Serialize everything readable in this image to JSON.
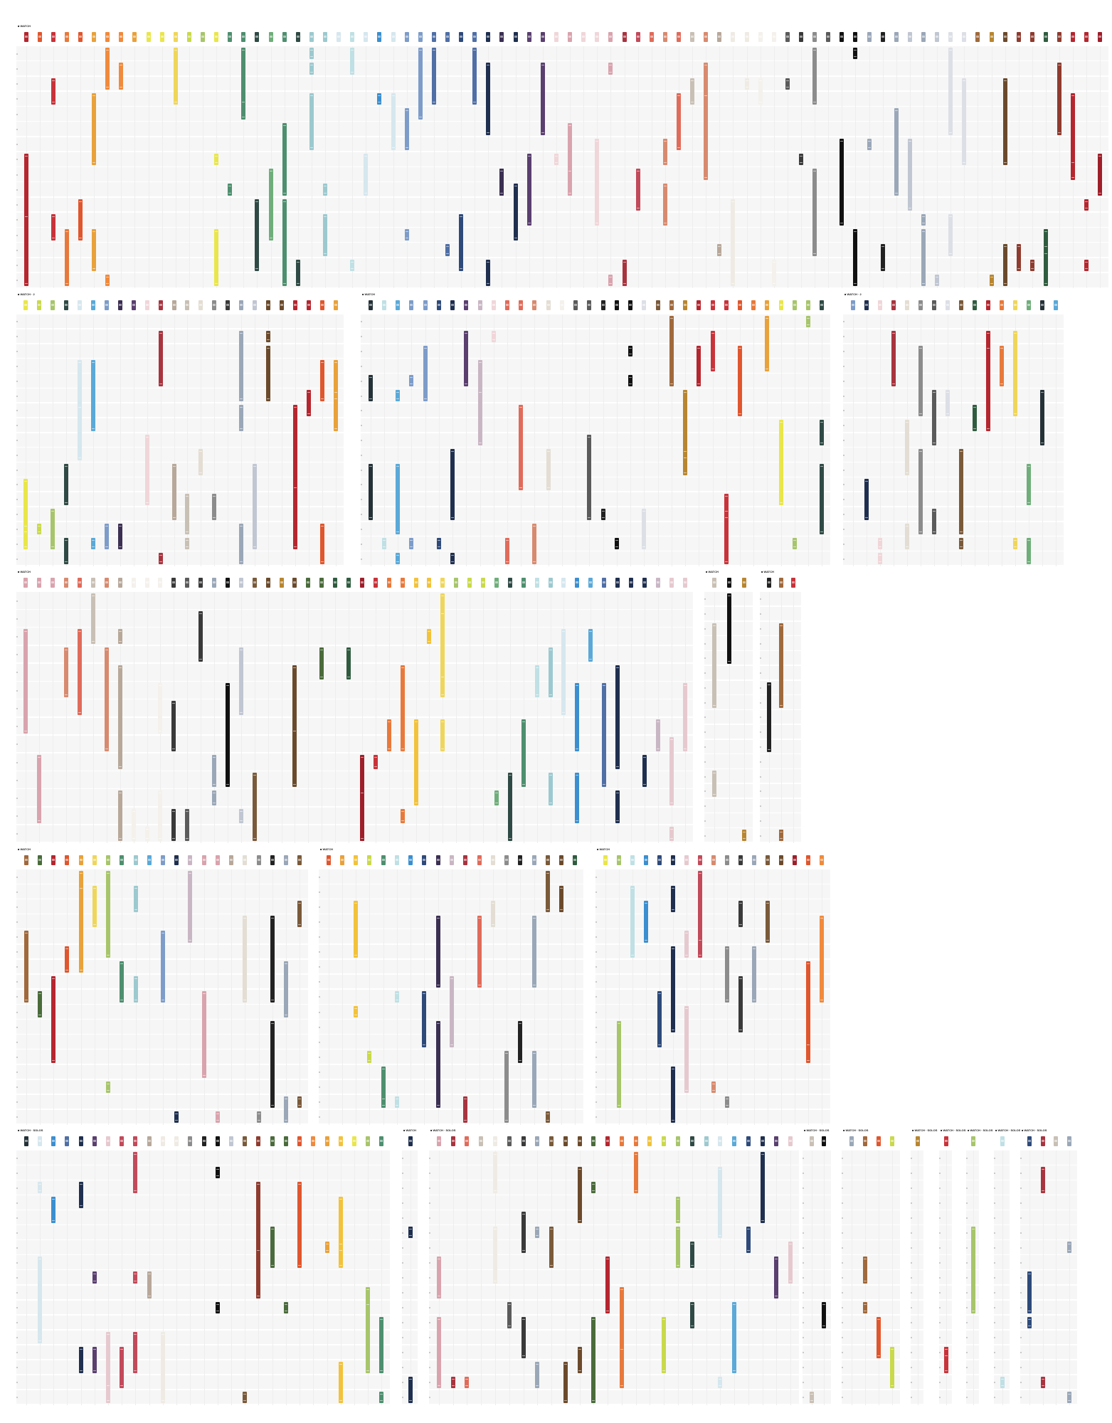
{
  "palette": [
    "#b5262f",
    "#9e1f2a",
    "#c8333a",
    "#e0562d",
    "#e8793b",
    "#f08a3c",
    "#e9a13a",
    "#f2c23a",
    "#efd65a",
    "#e9e64a",
    "#c9d94a",
    "#a7c56a",
    "#6fae7a",
    "#4e8f6f",
    "#2f4a44",
    "#243238",
    "#9cc9cf",
    "#bfe0e4",
    "#d6e7ee",
    "#5aa9d8",
    "#3b8fd0",
    "#7d9cc9",
    "#4f6fa6",
    "#2e4a7a",
    "#1f2f4f",
    "#3b2f52",
    "#5a3f6f",
    "#c9b6c4",
    "#e6c9cf",
    "#f0d6d9",
    "#d9a3ad",
    "#c24a5a",
    "#a8343f",
    "#e06b5a",
    "#d88a6f",
    "#b8a89a",
    "#c9c0b5",
    "#e3ddd3",
    "#efebe4",
    "#f4f1ec",
    "#8c8c8c",
    "#5b5b5b",
    "#3a3a3a",
    "#222222",
    "#111111",
    "#9aa7b8",
    "#c0c6d2",
    "#dcdfe6",
    "#7a5a3a",
    "#a0693c",
    "#6b4a2b",
    "#b8862f",
    "#8f3b2e",
    "#4a6b3b",
    "#2f5c3f"
  ],
  "panels": [
    {
      "title": "■ WATCH",
      "sub": "",
      "cols": 80,
      "rows": 16,
      "seed": 3
    },
    {
      "title": "■ WATCH · 2",
      "sub": "",
      "cols": 24,
      "rows": 17,
      "seed": 11
    },
    {
      "title": "■ WATCH",
      "sub": "",
      "cols": 34,
      "rows": 17,
      "seed": 19
    },
    {
      "title": "■ WATCH · 2",
      "sub": "",
      "cols": 16,
      "rows": 17,
      "seed": 27
    },
    {
      "title": "■ WATCH",
      "sub": "",
      "cols": 50,
      "rows": 14,
      "seed": 35
    },
    {
      "title": "■ WATCH",
      "sub": "",
      "cols": 3,
      "rows": 17,
      "seed": 43
    },
    {
      "title": "■ WATCH",
      "sub": "",
      "cols": 3,
      "rows": 17,
      "seed": 51
    },
    {
      "title": "■ WATCH",
      "sub": "",
      "cols": 21,
      "rows": 17,
      "seed": 59
    },
    {
      "title": "■ WATCH",
      "sub": "",
      "cols": 19,
      "rows": 17,
      "seed": 67
    },
    {
      "title": "■ WATCH",
      "sub": "",
      "cols": 17,
      "rows": 17,
      "seed": 75
    },
    {
      "title": "■ WATCH · SOLOS",
      "sub": "",
      "cols": 27,
      "rows": 17,
      "seed": 83
    },
    {
      "title": "■ WATCH",
      "sub": "",
      "cols": 1,
      "rows": 17,
      "seed": 91
    },
    {
      "title": "■ WATCH · SOLOS",
      "sub": "",
      "cols": 26,
      "rows": 17,
      "seed": 99
    },
    {
      "title": "■ WATCH · SOLOS",
      "sub": "",
      "cols": 2,
      "rows": 17,
      "seed": 107
    },
    {
      "title": "■ WATCH · SOLOS",
      "sub": "",
      "cols": 4,
      "rows": 17,
      "seed": 115
    },
    {
      "title": "■ WATCH · SOLOS",
      "sub": "",
      "cols": 1,
      "rows": 17,
      "seed": 123
    },
    {
      "title": "■ WATCH · SOLOS",
      "sub": "",
      "cols": 1,
      "rows": 17,
      "seed": 131
    },
    {
      "title": "■ WATCH · SOLOS",
      "sub": "",
      "cols": 1,
      "rows": 17,
      "seed": 139
    },
    {
      "title": "■ WATCH · SOLOS",
      "sub": "",
      "cols": 1,
      "rows": 17,
      "seed": 147
    },
    {
      "title": "■ WATCH · SOLOS",
      "sub": "",
      "cols": 4,
      "rows": 17,
      "seed": 155
    }
  ]
}
